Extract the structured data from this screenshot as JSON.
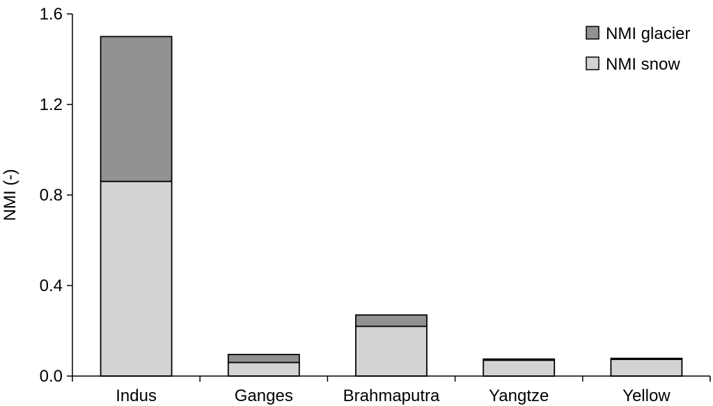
{
  "chart_data": {
    "type": "bar",
    "stacked": true,
    "categories": [
      "Indus",
      "Ganges",
      "Brahmaputra",
      "Yangtze",
      "Yellow"
    ],
    "series": [
      {
        "name": "NMI snow",
        "values": [
          0.86,
          0.06,
          0.22,
          0.07,
          0.074
        ],
        "color": "#d3d3d3"
      },
      {
        "name": "NMI glacier",
        "values": [
          0.64,
          0.035,
          0.05,
          0.005,
          0.004
        ],
        "color": "#929292"
      }
    ],
    "ylabel": "NMI (-)",
    "ylim": [
      0,
      1.6
    ],
    "yticks": [
      0.0,
      0.4,
      0.8,
      1.2,
      1.6
    ],
    "ytick_labels": [
      "0.0",
      "0.4",
      "0.8",
      "1.2",
      "1.6"
    ],
    "grid": false,
    "legend": {
      "position": "top-right",
      "entries": [
        "NMI glacier",
        "NMI snow"
      ]
    }
  }
}
